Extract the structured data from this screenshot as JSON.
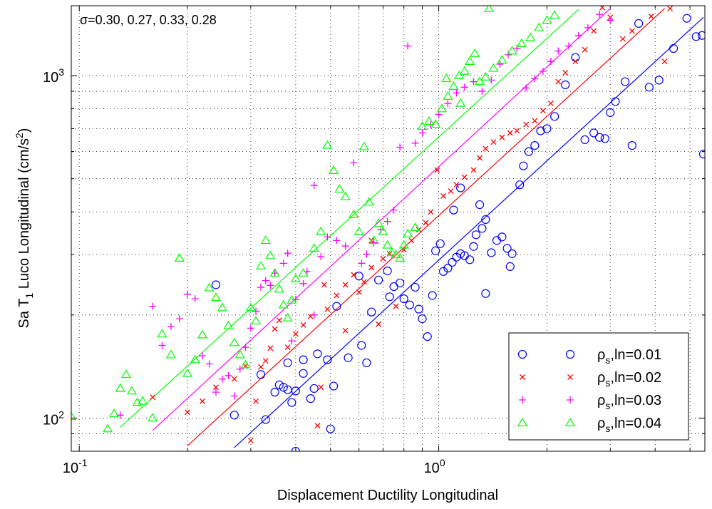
{
  "chart_data": {
    "type": "scatter",
    "title": "",
    "xlabel": "Displacement Ductility Longitudinal",
    "ylabel": {
      "prefix": "Sa T",
      "sub": "1",
      "suffix": " Luco Longitudinal (cm/s",
      "sup": "2",
      "close": ")"
    },
    "xscale": "log",
    "yscale": "log",
    "xlim": [
      0.095,
      5.5
    ],
    "ylim": [
      80,
      1600
    ],
    "grid": true,
    "legend_position": "bottom-right",
    "x_ticks": [
      {
        "value": 0.1,
        "base": "10",
        "exp": "-1"
      },
      {
        "value": 1,
        "base": "10",
        "exp": "0"
      }
    ],
    "y_ticks": [
      {
        "value": 100,
        "base": "10",
        "exp": "2"
      },
      {
        "value": 1000,
        "base": "10",
        "exp": "3"
      }
    ],
    "annotation": "σ=0.30, 0.27, 0.33, 0.28",
    "series": [
      {
        "name": {
          "main": "ρ",
          "sub": "s",
          "rest": ",ln=0.01"
        },
        "color": "#0000ff",
        "marker": "circle",
        "fit": {
          "x": [
            0.27,
            5.45
          ],
          "y": [
            82,
            1480
          ]
        },
        "points": [
          [
            0.24,
            245
          ],
          [
            0.27,
            102
          ],
          [
            0.32,
            134
          ],
          [
            0.33,
            99
          ],
          [
            0.35,
            119
          ],
          [
            0.36,
            125
          ],
          [
            0.37,
            123
          ],
          [
            0.38,
            145
          ],
          [
            0.38,
            121
          ],
          [
            0.39,
            111
          ],
          [
            0.4,
            120
          ],
          [
            0.4,
            80
          ],
          [
            0.42,
            148
          ],
          [
            0.42,
            135
          ],
          [
            0.44,
            114
          ],
          [
            0.45,
            122
          ],
          [
            0.46,
            154
          ],
          [
            0.49,
            148
          ],
          [
            0.5,
            93
          ],
          [
            0.51,
            124
          ],
          [
            0.52,
            212
          ],
          [
            0.56,
            150
          ],
          [
            0.6,
            260
          ],
          [
            0.61,
            163
          ],
          [
            0.63,
            145
          ],
          [
            0.65,
            204
          ],
          [
            0.68,
            253
          ],
          [
            0.72,
            269
          ],
          [
            0.73,
            226
          ],
          [
            0.75,
            242
          ],
          [
            0.78,
            248
          ],
          [
            0.8,
            223
          ],
          [
            0.83,
            214
          ],
          [
            0.86,
            241
          ],
          [
            0.88,
            208
          ],
          [
            0.9,
            195
          ],
          [
            0.93,
            173
          ],
          [
            0.96,
            228
          ],
          [
            0.98,
            308
          ],
          [
            1.01,
            323
          ],
          [
            1.03,
            268
          ],
          [
            1.06,
            274
          ],
          [
            1.09,
            285
          ],
          [
            1.12,
            295
          ],
          [
            1.15,
            302
          ],
          [
            1.18,
            298
          ],
          [
            1.22,
            290
          ],
          [
            1.25,
            317
          ],
          [
            1.27,
            343
          ],
          [
            1.32,
            358
          ],
          [
            1.35,
            231
          ],
          [
            1.4,
            304
          ],
          [
            1.45,
            330
          ],
          [
            1.5,
            338
          ],
          [
            1.55,
            313
          ],
          [
            1.58,
            277
          ],
          [
            1.6,
            302
          ],
          [
            1.68,
            480
          ],
          [
            1.72,
            545
          ],
          [
            1.78,
            600
          ],
          [
            1.85,
            625
          ],
          [
            1.92,
            690
          ],
          [
            2.0,
            700
          ],
          [
            2.1,
            760
          ],
          [
            2.25,
            940
          ],
          [
            2.4,
            1130
          ],
          [
            2.55,
            650
          ],
          [
            2.7,
            680
          ],
          [
            2.8,
            660
          ],
          [
            2.9,
            655
          ],
          [
            3.0,
            780
          ],
          [
            3.1,
            840
          ],
          [
            3.3,
            960
          ],
          [
            3.45,
            625
          ],
          [
            3.6,
            1420
          ],
          [
            3.85,
            925
          ],
          [
            4.1,
            970
          ],
          [
            4.5,
            1200
          ],
          [
            4.9,
            1470
          ],
          [
            5.2,
            1300
          ],
          [
            5.4,
            1310
          ],
          [
            5.45,
            590
          ],
          [
            1.35,
            380
          ],
          [
            1.3,
            420
          ],
          [
            1.15,
            470
          ],
          [
            1.1,
            405
          ]
        ]
      },
      {
        "name": {
          "main": "ρ",
          "sub": "s",
          "rest": ",ln=0.02"
        },
        "color": "#ff0000",
        "marker": "x",
        "fit": {
          "x": [
            0.2,
            4.25
          ],
          "y": [
            83,
            1570
          ]
        },
        "points": [
          [
            0.16,
            115
          ],
          [
            0.2,
            104
          ],
          [
            0.22,
            112
          ],
          [
            0.24,
            123
          ],
          [
            0.27,
            130
          ],
          [
            0.29,
            142
          ],
          [
            0.3,
            86
          ],
          [
            0.31,
            112
          ],
          [
            0.32,
            141
          ],
          [
            0.33,
            147
          ],
          [
            0.34,
            160
          ],
          [
            0.35,
            182
          ],
          [
            0.36,
            193
          ],
          [
            0.38,
            161
          ],
          [
            0.4,
            176
          ],
          [
            0.42,
            187
          ],
          [
            0.44,
            198
          ],
          [
            0.46,
            95
          ],
          [
            0.47,
            123
          ],
          [
            0.49,
            208
          ],
          [
            0.52,
            228
          ],
          [
            0.55,
            245
          ],
          [
            0.58,
            262
          ],
          [
            0.6,
            233
          ],
          [
            0.62,
            250
          ],
          [
            0.65,
            275
          ],
          [
            0.68,
            188
          ],
          [
            0.7,
            292
          ],
          [
            0.73,
            302
          ],
          [
            0.76,
            212
          ],
          [
            0.8,
            310
          ],
          [
            0.84,
            330
          ],
          [
            0.88,
            355
          ],
          [
            0.92,
            372
          ],
          [
            0.95,
            400
          ],
          [
            0.99,
            530
          ],
          [
            1.03,
            445
          ],
          [
            1.08,
            460
          ],
          [
            1.12,
            480
          ],
          [
            1.18,
            505
          ],
          [
            1.25,
            530
          ],
          [
            1.3,
            575
          ],
          [
            1.35,
            612
          ],
          [
            1.42,
            640
          ],
          [
            1.5,
            660
          ],
          [
            1.58,
            680
          ],
          [
            1.65,
            690
          ],
          [
            1.75,
            720
          ],
          [
            1.85,
            738
          ],
          [
            1.95,
            790
          ],
          [
            2.05,
            830
          ],
          [
            2.15,
            960
          ],
          [
            2.25,
            1020
          ],
          [
            2.4,
            1100
          ],
          [
            2.55,
            1190
          ],
          [
            2.7,
            1350
          ],
          [
            2.85,
            1580
          ],
          [
            3.0,
            1480
          ],
          [
            3.25,
            1280
          ],
          [
            3.45,
            1350
          ],
          [
            3.9,
            1490
          ],
          [
            4.25,
            1100
          ],
          [
            4.4,
            1570
          ],
          [
            0.65,
            330
          ],
          [
            0.55,
            180
          ],
          [
            0.48,
            245
          ]
        ]
      },
      {
        "name": {
          "main": "ρ",
          "sub": "s",
          "rest": ",ln=0.03"
        },
        "color": "#ff00ff",
        "marker": "plus",
        "fit": {
          "x": [
            0.16,
            3.0
          ],
          "y": [
            92,
            1570
          ]
        },
        "points": [
          [
            0.13,
            102
          ],
          [
            0.16,
            212
          ],
          [
            0.17,
            163
          ],
          [
            0.18,
            185
          ],
          [
            0.19,
            195
          ],
          [
            0.2,
            230
          ],
          [
            0.21,
            223
          ],
          [
            0.22,
            152
          ],
          [
            0.23,
            144
          ],
          [
            0.24,
            119
          ],
          [
            0.25,
            130
          ],
          [
            0.26,
            133
          ],
          [
            0.27,
            116
          ],
          [
            0.28,
            139
          ],
          [
            0.29,
            161
          ],
          [
            0.3,
            183
          ],
          [
            0.31,
            205
          ],
          [
            0.32,
            241
          ],
          [
            0.33,
            252
          ],
          [
            0.35,
            265
          ],
          [
            0.37,
            283
          ],
          [
            0.38,
            303
          ],
          [
            0.4,
            222
          ],
          [
            0.42,
            247
          ],
          [
            0.43,
            268
          ],
          [
            0.45,
            478
          ],
          [
            0.47,
            296
          ],
          [
            0.49,
            338
          ],
          [
            0.52,
            330
          ],
          [
            0.55,
            318
          ],
          [
            0.58,
            556
          ],
          [
            0.61,
            283
          ],
          [
            0.63,
            301
          ],
          [
            0.66,
            325
          ],
          [
            0.69,
            355
          ],
          [
            0.72,
            375
          ],
          [
            0.75,
            405
          ],
          [
            0.78,
            618
          ],
          [
            0.82,
            1220
          ],
          [
            0.86,
            635
          ],
          [
            0.9,
            680
          ],
          [
            0.95,
            720
          ],
          [
            1.0,
            770
          ],
          [
            1.06,
            830
          ],
          [
            1.12,
            890
          ],
          [
            1.18,
            925
          ],
          [
            1.25,
            960
          ],
          [
            1.32,
            900
          ],
          [
            1.4,
            970
          ],
          [
            1.48,
            1080
          ],
          [
            1.56,
            1150
          ],
          [
            1.65,
            1200
          ],
          [
            1.75,
            920
          ],
          [
            1.85,
            980
          ],
          [
            1.95,
            1030
          ],
          [
            2.05,
            1100
          ],
          [
            2.15,
            1180
          ],
          [
            2.3,
            1220
          ],
          [
            2.45,
            1310
          ],
          [
            2.6,
            1380
          ],
          [
            2.8,
            1510
          ],
          [
            3.0,
            1450
          ],
          [
            0.45,
            200
          ],
          [
            0.39,
            168
          ],
          [
            0.34,
            244
          ]
        ]
      },
      {
        "name": {
          "main": "ρ",
          "sub": "s",
          "rest": ",ln=0.04"
        },
        "color": "#00ff00",
        "marker": "triangle",
        "fit": {
          "x": [
            0.13,
            2.45
          ],
          "y": [
            94,
            1560
          ]
        },
        "points": [
          [
            0.095,
            101
          ],
          [
            0.12,
            93
          ],
          [
            0.125,
            103
          ],
          [
            0.13,
            122
          ],
          [
            0.135,
            134
          ],
          [
            0.14,
            120
          ],
          [
            0.145,
            111
          ],
          [
            0.15,
            112
          ],
          [
            0.16,
            100
          ],
          [
            0.17,
            176
          ],
          [
            0.18,
            153
          ],
          [
            0.19,
            293
          ],
          [
            0.2,
            135
          ],
          [
            0.21,
            148
          ],
          [
            0.22,
            175
          ],
          [
            0.23,
            240
          ],
          [
            0.24,
            225
          ],
          [
            0.25,
            210
          ],
          [
            0.26,
            186
          ],
          [
            0.27,
            166
          ],
          [
            0.28,
            153
          ],
          [
            0.29,
            143
          ],
          [
            0.3,
            210
          ],
          [
            0.31,
            192
          ],
          [
            0.32,
            278
          ],
          [
            0.33,
            330
          ],
          [
            0.34,
            298
          ],
          [
            0.35,
            265
          ],
          [
            0.36,
            238
          ],
          [
            0.37,
            214
          ],
          [
            0.38,
            196
          ],
          [
            0.39,
            221
          ],
          [
            0.4,
            255
          ],
          [
            0.42,
            265
          ],
          [
            0.45,
            313
          ],
          [
            0.47,
            350
          ],
          [
            0.49,
            626
          ],
          [
            0.51,
            528
          ],
          [
            0.53,
            466
          ],
          [
            0.55,
            443
          ],
          [
            0.58,
            393
          ],
          [
            0.6,
            350
          ],
          [
            0.62,
            620
          ],
          [
            0.64,
            427
          ],
          [
            0.66,
            330
          ],
          [
            0.68,
            370
          ],
          [
            0.7,
            350
          ],
          [
            0.72,
            320
          ],
          [
            0.74,
            305
          ],
          [
            0.76,
            300
          ],
          [
            0.78,
            293
          ],
          [
            0.8,
            320
          ],
          [
            0.82,
            345
          ],
          [
            0.86,
            360
          ],
          [
            0.9,
            710
          ],
          [
            0.94,
            735
          ],
          [
            0.98,
            720
          ],
          [
            1.02,
            800
          ],
          [
            1.06,
            870
          ],
          [
            1.1,
            930
          ],
          [
            1.14,
            1000
          ],
          [
            1.18,
            1030
          ],
          [
            1.22,
            1100
          ],
          [
            1.26,
            1160
          ],
          [
            1.3,
            960
          ],
          [
            1.35,
            990
          ],
          [
            1.42,
            1050
          ],
          [
            1.5,
            1110
          ],
          [
            1.6,
            1180
          ],
          [
            1.7,
            1240
          ],
          [
            1.8,
            1290
          ],
          [
            1.9,
            1380
          ],
          [
            2.0,
            1450
          ],
          [
            2.1,
            1500
          ],
          [
            1.38,
            1570
          ],
          [
            1.15,
            830
          ],
          [
            1.05,
            980
          ]
        ]
      }
    ]
  }
}
